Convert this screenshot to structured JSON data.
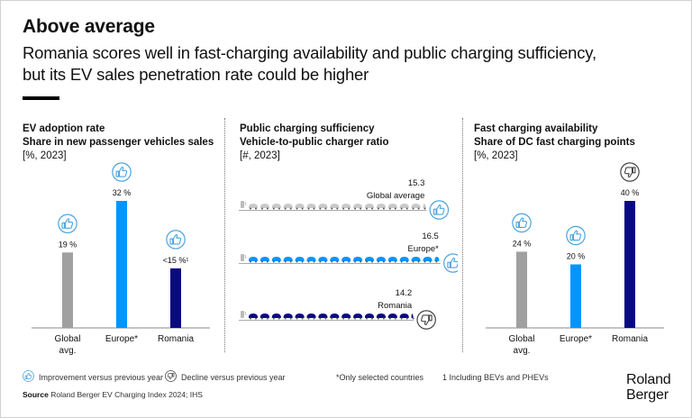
{
  "header": {
    "title": "Above average",
    "subtitle": "Romania scores well in fast-charging availability and public charging sufficiency, but its EV sales penetration rate could be higher"
  },
  "colors": {
    "global": "#a0a0a0",
    "europe": "#0095ff",
    "romania": "#0a0a80",
    "improvement_icon": "#4aa3df",
    "decline_icon": "#444444"
  },
  "chart_data": [
    {
      "type": "bar",
      "title": "EV adoption rate",
      "subtitle": "Share in new passenger vehicles sales",
      "unit_label": "[%, 2023]",
      "categories": [
        "Global avg.",
        "Europe*",
        "Romania"
      ],
      "values": [
        19,
        32,
        15
      ],
      "value_labels": [
        "19 %",
        "32 %",
        "<15 %¹"
      ],
      "trend": [
        "improvement",
        "improvement",
        "improvement"
      ],
      "ylim": [
        0,
        32
      ],
      "grid": false
    },
    {
      "type": "bar",
      "title": "Public charging sufficiency",
      "subtitle": "Vehicle-to-public charger ratio",
      "unit_label": "[#, 2023]",
      "orientation": "horizontal-pictogram",
      "categories": [
        "Global average",
        "Europe*",
        "Romania"
      ],
      "values": [
        15.3,
        16.5,
        14.2
      ],
      "value_labels": [
        "15.3",
        "16.5",
        "14.2"
      ],
      "trend": [
        "improvement",
        "improvement",
        "decline"
      ]
    },
    {
      "type": "bar",
      "title": "Fast charging availability",
      "subtitle": "Share of DC fast charging points",
      "unit_label": "[%, 2023]",
      "categories": [
        "Global avg.",
        "Europe*",
        "Romania"
      ],
      "values": [
        24,
        20,
        40
      ],
      "value_labels": [
        "24 %",
        "20 %",
        "40 %"
      ],
      "trend": [
        "improvement",
        "improvement",
        "decline"
      ],
      "ylim": [
        0,
        40
      ],
      "grid": false
    }
  ],
  "legend": {
    "improvement": "Improvement versus previous year",
    "decline": "Decline versus previous year"
  },
  "notes": {
    "selected": "*Only selected countries",
    "footnote1": "1 Including BEVs and PHEVs"
  },
  "source": {
    "label": "Source",
    "text": "Roland Berger EV Charging Index 2024; IHS"
  },
  "logo": {
    "line1": "Roland",
    "line2": "Berger"
  }
}
